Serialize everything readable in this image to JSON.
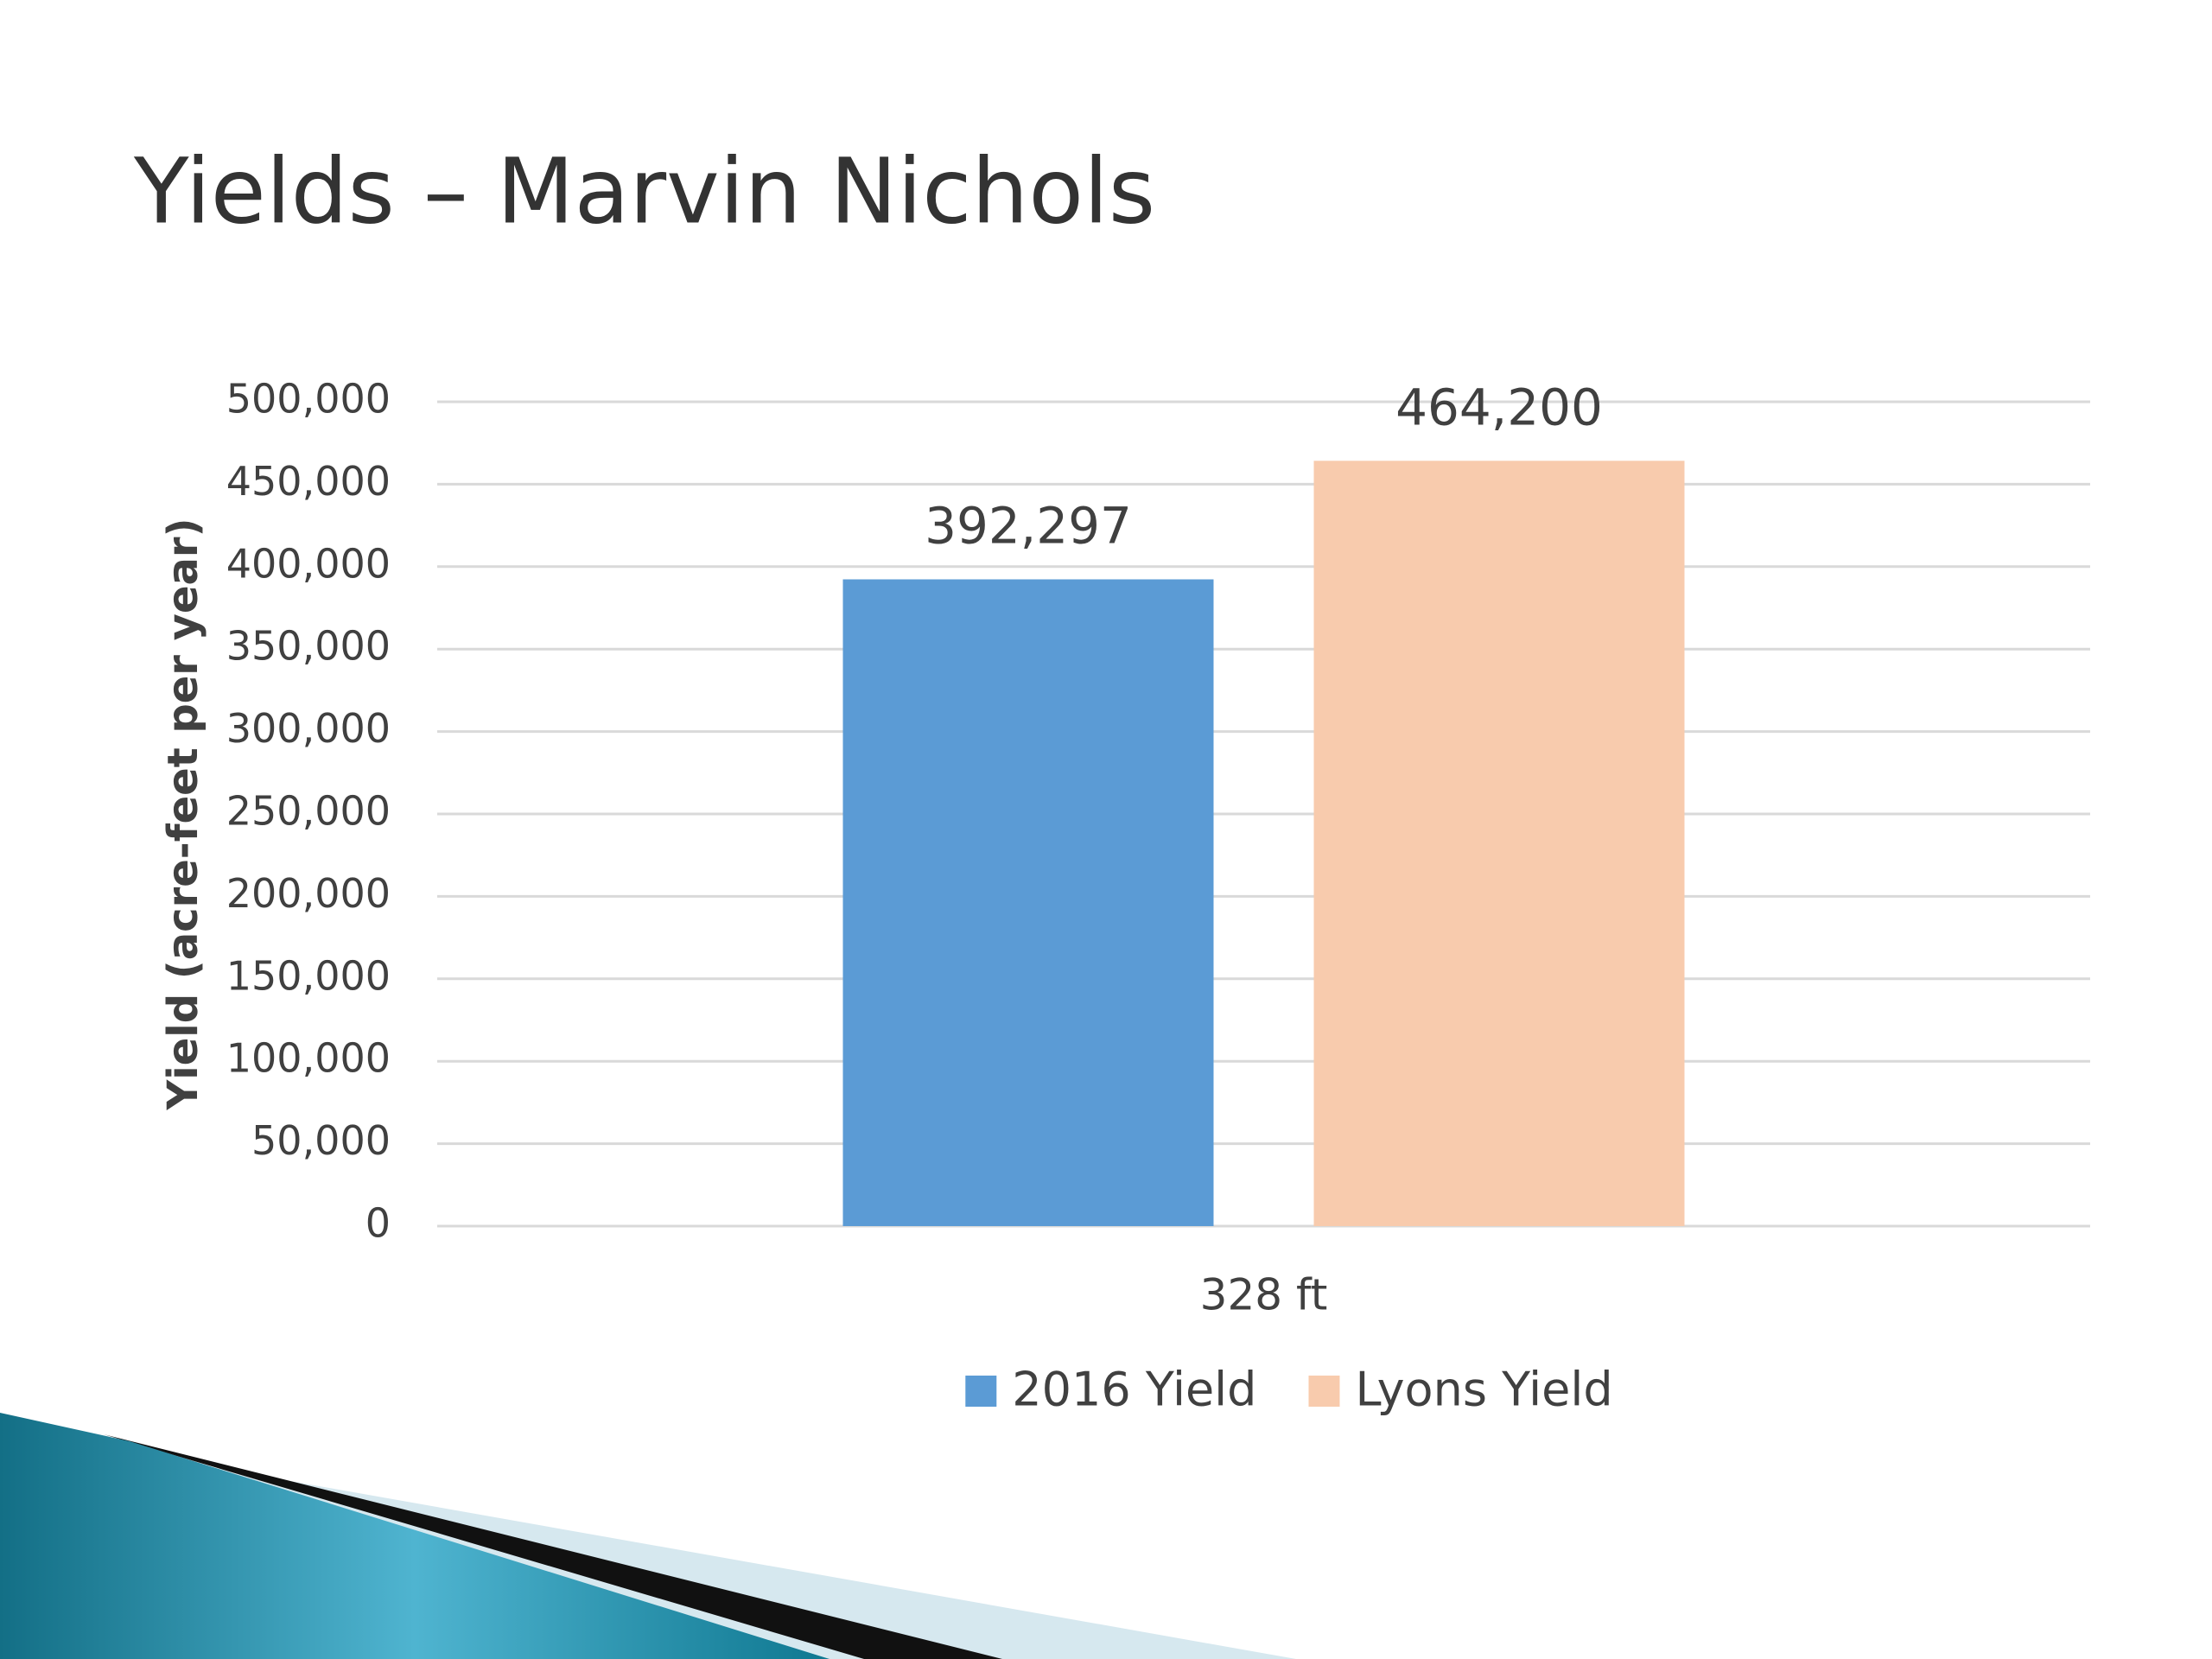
{
  "chart_data": {
    "type": "bar",
    "title": "Yields – Marvin Nichols",
    "y_label": "Yield (acre-feet per year)",
    "categories": [
      "328 ft"
    ],
    "series": [
      {
        "name": "2016 Yield",
        "color": "#5b9bd5",
        "values": [
          392297
        ],
        "value_labels": [
          "392,297"
        ]
      },
      {
        "name": "Lyons Yield",
        "color": "#f8cbad",
        "values": [
          464200
        ],
        "value_labels": [
          "464,200"
        ]
      }
    ],
    "ylim": [
      0,
      500000
    ],
    "yticks": [
      {
        "value": 0,
        "label": "0"
      },
      {
        "value": 50000,
        "label": "50,000"
      },
      {
        "value": 100000,
        "label": "100,000"
      },
      {
        "value": 150000,
        "label": "150,000"
      },
      {
        "value": 200000,
        "label": "200,000"
      },
      {
        "value": 250000,
        "label": "250,000"
      },
      {
        "value": 300000,
        "label": "300,000"
      },
      {
        "value": 350000,
        "label": "350,000"
      },
      {
        "value": 400000,
        "label": "400,000"
      },
      {
        "value": 450000,
        "label": "450,000"
      },
      {
        "value": 500000,
        "label": "500,000"
      }
    ],
    "grid": true,
    "legend": "bottom"
  }
}
